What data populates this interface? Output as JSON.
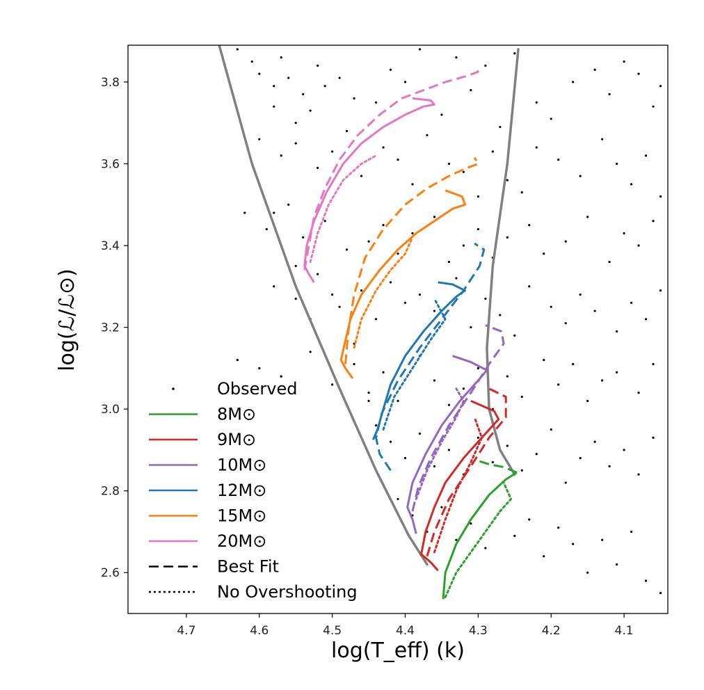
{
  "chart_data": {
    "type": "line",
    "xlabel": "log(T_eff) (k)",
    "ylabel": "log(ℒ/ℒ⊙)",
    "xlim": [
      4.78,
      4.04
    ],
    "ylim": [
      2.5,
      3.89
    ],
    "x_axis_reversed": true,
    "x_ticks": [
      4.7,
      4.6,
      4.5,
      4.4,
      4.3,
      4.2,
      4.1
    ],
    "x_tick_labels": [
      "4.7",
      "4.6",
      "4.5",
      "4.4",
      "4.3",
      "4.2",
      "4.1"
    ],
    "y_ticks": [
      2.6,
      2.8,
      3.0,
      3.2,
      3.4,
      3.6,
      3.8
    ],
    "y_tick_labels": [
      "2.6",
      "2.8",
      "3.0",
      "3.2",
      "3.4",
      "3.6",
      "3.8"
    ],
    "grid": false,
    "legend_position": "lower-left",
    "legend": [
      {
        "label": "Observed",
        "type": "point",
        "color": "#000000"
      },
      {
        "label": "8M⊙",
        "type": "solid",
        "color": "#2ca02c"
      },
      {
        "label": "9M⊙",
        "type": "solid",
        "color": "#d62728"
      },
      {
        "label": "10M⊙",
        "type": "solid",
        "color": "#9467bd"
      },
      {
        "label": "12M⊙",
        "type": "solid",
        "color": "#1f77b4"
      },
      {
        "label": "15M⊙",
        "type": "solid",
        "color": "#ff7f0e"
      },
      {
        "label": "20M⊙",
        "type": "solid",
        "color": "#e377c2"
      },
      {
        "label": "Best Fit",
        "type": "dashed",
        "color": "#000000"
      },
      {
        "label": "No Overshooting",
        "type": "dotted",
        "color": "#000000"
      }
    ],
    "boundary_lines": [
      {
        "color": "#808080",
        "x": [
          4.655,
          4.61,
          4.55,
          4.49,
          4.44,
          4.395,
          4.37
        ],
        "y": [
          3.89,
          3.6,
          3.3,
          3.05,
          2.85,
          2.69,
          2.62
        ]
      },
      {
        "color": "#808080",
        "x": [
          4.245,
          4.26,
          4.28,
          4.288,
          4.285,
          4.27,
          4.25
        ],
        "y": [
          3.88,
          3.6,
          3.35,
          3.15,
          3.0,
          2.9,
          2.84
        ]
      }
    ],
    "series": [
      {
        "mass": "8M⊙",
        "color": "#2ca02c",
        "tracks": [
          {
            "style": "solid",
            "x": [
              4.348,
              4.345,
              4.33,
              4.31,
              4.285,
              4.262,
              4.247
            ],
            "y": [
              2.535,
              2.6,
              2.67,
              2.73,
              2.79,
              2.828,
              2.845
            ]
          },
          {
            "style": "dashed",
            "x": [
              4.247,
              4.265,
              4.285,
              4.303
            ],
            "y": [
              2.845,
              2.858,
              2.865,
              2.875
            ]
          },
          {
            "style": "dotted",
            "x": [
              4.345,
              4.33,
              4.31,
              4.29,
              4.27,
              4.255,
              4.265
            ],
            "y": [
              2.54,
              2.6,
              2.65,
              2.7,
              2.75,
              2.78,
              2.82
            ]
          }
        ]
      },
      {
        "mass": "9M⊙",
        "color": "#d62728",
        "tracks": [
          {
            "style": "solid",
            "x": [
              4.355,
              4.365,
              4.378,
              4.372,
              4.36,
              4.345,
              4.32,
              4.295,
              4.272,
              4.278,
              4.31
            ],
            "y": [
              2.605,
              2.625,
              2.645,
              2.7,
              2.76,
              2.82,
              2.88,
              2.93,
              2.975,
              2.995,
              3.02
            ]
          },
          {
            "style": "dashed",
            "x": [
              4.37,
              4.36,
              4.34,
              4.31,
              4.285,
              4.262,
              4.262,
              4.285
            ],
            "y": [
              2.64,
              2.7,
              2.78,
              2.86,
              2.93,
              2.98,
              3.03,
              3.05
            ]
          },
          {
            "style": "dotted",
            "x": [
              4.36,
              4.345,
              4.33,
              4.31,
              4.295,
              4.305
            ],
            "y": [
              2.65,
              2.73,
              2.8,
              2.87,
              2.93,
              2.98
            ]
          }
        ]
      },
      {
        "mass": "10M⊙",
        "color": "#9467bd",
        "tracks": [
          {
            "style": "solid",
            "x": [
              4.385,
              4.39,
              4.397,
              4.39,
              4.372,
              4.35,
              4.325,
              4.3,
              4.288,
              4.31,
              4.335
            ],
            "y": [
              2.695,
              2.73,
              2.76,
              2.82,
              2.89,
              2.96,
              3.02,
              3.07,
              3.095,
              3.115,
              3.13
            ]
          },
          {
            "style": "dashed",
            "x": [
              4.39,
              4.382,
              4.365,
              4.34,
              4.31,
              4.285,
              4.265,
              4.268,
              4.29
            ],
            "y": [
              2.75,
              2.81,
              2.88,
              2.96,
              3.04,
              3.11,
              3.16,
              3.19,
              3.205
            ]
          },
          {
            "style": "dotted",
            "x": [
              4.385,
              4.37,
              4.35,
              4.33,
              4.32,
              4.33
            ],
            "y": [
              2.78,
              2.85,
              2.92,
              2.98,
              3.02,
              3.05
            ]
          }
        ]
      },
      {
        "mass": "12M⊙",
        "color": "#1f77b4",
        "tracks": [
          {
            "style": "solid",
            "x": [
              4.444,
              4.438,
              4.43,
              4.42,
              4.4,
              4.375,
              4.35,
              4.33,
              4.318,
              4.335,
              4.355
            ],
            "y": [
              2.925,
              2.95,
              3.0,
              3.06,
              3.13,
              3.19,
              3.24,
              3.275,
              3.29,
              3.305,
              3.31
            ]
          },
          {
            "style": "dashed",
            "x": [
              4.42,
              4.435,
              4.44,
              4.432,
              4.41,
              4.38,
              4.35,
              4.32,
              4.298,
              4.292,
              4.305
            ],
            "y": [
              2.85,
              2.89,
              2.93,
              2.99,
              3.07,
              3.15,
              3.22,
              3.29,
              3.35,
              3.39,
              3.405
            ]
          },
          {
            "style": "dotted",
            "x": [
              4.43,
              4.415,
              4.39,
              4.365,
              4.345,
              4.36
            ],
            "y": [
              2.95,
              3.03,
              3.1,
              3.17,
              3.22,
              3.27
            ]
          }
        ]
      },
      {
        "mass": "15M⊙",
        "color": "#ff7f0e",
        "tracks": [
          {
            "style": "solid",
            "x": [
              4.472,
              4.482,
              4.488,
              4.483,
              4.475,
              4.46,
              4.435,
              4.41,
              4.385,
              4.36,
              4.335,
              4.318,
              4.322,
              4.345
            ],
            "y": [
              3.075,
              3.1,
              3.12,
              3.16,
              3.22,
              3.28,
              3.34,
              3.39,
              3.43,
              3.46,
              3.49,
              3.5,
              3.52,
              3.535
            ]
          },
          {
            "style": "dashed",
            "x": [
              4.482,
              4.478,
              4.47,
              4.455,
              4.43,
              4.4,
              4.37,
              4.34,
              4.315,
              4.3,
              4.305
            ],
            "y": [
              3.11,
              3.19,
              3.28,
              3.37,
              3.44,
              3.5,
              3.54,
              3.57,
              3.59,
              3.6,
              3.615
            ]
          },
          {
            "style": "dotted",
            "x": [
              4.47,
              4.46,
              4.44,
              4.42,
              4.4,
              4.39
            ],
            "y": [
              3.15,
              3.22,
              3.29,
              3.34,
              3.38,
              3.42
            ]
          }
        ]
      },
      {
        "mass": "20M⊙",
        "color": "#e377c2",
        "tracks": [
          {
            "style": "solid",
            "x": [
              4.525,
              4.532,
              4.538,
              4.535,
              4.525,
              4.508,
              4.485,
              4.46,
              4.43,
              4.4,
              4.375,
              4.36,
              4.365,
              4.39
            ],
            "y": [
              3.31,
              3.33,
              3.35,
              3.4,
              3.46,
              3.53,
              3.6,
              3.65,
              3.69,
              3.72,
              3.74,
              3.745,
              3.755,
              3.76
            ]
          },
          {
            "style": "dashed",
            "x": [
              4.538,
              4.532,
              4.525,
              4.51,
              4.49,
              4.465,
              4.435,
              4.405,
              4.375,
              4.345,
              4.315,
              4.3,
              4.305
            ],
            "y": [
              3.34,
              3.4,
              3.47,
              3.54,
              3.61,
              3.67,
              3.72,
              3.76,
              3.78,
              3.8,
              3.815,
              3.825,
              3.835
            ]
          },
          {
            "style": "dotted",
            "x": [
              4.53,
              4.52,
              4.505,
              4.485,
              4.46,
              4.44
            ],
            "y": [
              3.36,
              3.43,
              3.5,
              3.56,
              3.6,
              3.62
            ]
          }
        ]
      }
    ],
    "observed_points": {
      "x": [
        4.63,
        4.61,
        4.6,
        4.58,
        4.57,
        4.56,
        4.54,
        4.52,
        4.58,
        4.55,
        4.53,
        4.51,
        4.49,
        4.47,
        4.44,
        4.42,
        4.4,
        4.38,
        4.35,
        4.33,
        4.31,
        4.29,
        4.27,
        4.25,
        4.22,
        4.2,
        4.17,
        4.14,
        4.12,
        4.1,
        4.08,
        4.06,
        4.05,
        4.6,
        4.57,
        4.55,
        4.52,
        4.5,
        4.48,
        4.46,
        4.43,
        4.41,
        4.39,
        4.37,
        4.34,
        4.32,
        4.3,
        4.28,
        4.26,
        4.24,
        4.22,
        4.19,
        4.16,
        4.13,
        4.11,
        4.09,
        4.07,
        4.62,
        4.59,
        4.56,
        4.54,
        4.51,
        4.48,
        4.45,
        4.43,
        4.41,
        4.39,
        4.36,
        4.34,
        4.32,
        4.3,
        4.28,
        4.26,
        4.23,
        4.21,
        4.18,
        4.15,
        4.12,
        4.1,
        4.08,
        4.06,
        4.05,
        4.58,
        4.55,
        4.52,
        4.49,
        4.46,
        4.44,
        4.42,
        4.4,
        4.38,
        4.36,
        4.33,
        4.31,
        4.29,
        4.27,
        4.25,
        4.23,
        4.2,
        4.18,
        4.16,
        4.14,
        4.11,
        4.09,
        4.07,
        4.05,
        4.63,
        4.6,
        4.57,
        4.53,
        4.5,
        4.47,
        4.45,
        4.43,
        4.41,
        4.38,
        4.36,
        4.34,
        4.32,
        4.3,
        4.28,
        4.26,
        4.24,
        4.21,
        4.19,
        4.17,
        4.15,
        4.13,
        4.11,
        4.08,
        4.06,
        4.44,
        4.42,
        4.4,
        4.38,
        4.36,
        4.34,
        4.32,
        4.3,
        4.28,
        4.26,
        4.24,
        4.22,
        4.2,
        4.18,
        4.16,
        4.14,
        4.12,
        4.1,
        4.08,
        4.06,
        4.41,
        4.39,
        4.37,
        4.35,
        4.33,
        4.31,
        4.29,
        4.27,
        4.25,
        4.23,
        4.21,
        4.19,
        4.17,
        4.15,
        4.13,
        4.11,
        4.09,
        4.07,
        4.05,
        4.6,
        4.58,
        4.55,
        4.53,
        4.5,
        4.47,
        4.45
      ],
      "y": [
        3.88,
        3.85,
        3.82,
        3.79,
        3.86,
        3.81,
        3.77,
        3.84,
        3.74,
        3.7,
        3.73,
        3.79,
        3.81,
        3.76,
        3.75,
        3.83,
        3.8,
        3.88,
        3.72,
        3.86,
        3.78,
        3.84,
        3.69,
        3.87,
        3.75,
        3.71,
        3.8,
        3.83,
        3.77,
        3.85,
        3.82,
        3.74,
        3.79,
        3.66,
        3.62,
        3.65,
        3.59,
        3.63,
        3.68,
        3.57,
        3.64,
        3.61,
        3.55,
        3.67,
        3.6,
        3.58,
        3.52,
        3.63,
        3.56,
        3.53,
        3.64,
        3.61,
        3.57,
        3.66,
        3.6,
        3.55,
        3.62,
        3.48,
        3.44,
        3.5,
        3.42,
        3.46,
        3.39,
        3.41,
        3.45,
        3.38,
        3.43,
        3.47,
        3.36,
        3.4,
        3.44,
        3.37,
        3.42,
        3.45,
        3.38,
        3.41,
        3.47,
        3.36,
        3.43,
        3.4,
        3.46,
        3.52,
        3.3,
        3.27,
        3.33,
        3.25,
        3.29,
        3.22,
        3.31,
        3.26,
        3.28,
        3.24,
        3.32,
        3.2,
        3.27,
        3.23,
        3.18,
        3.3,
        3.25,
        3.21,
        3.28,
        3.24,
        3.19,
        3.26,
        3.22,
        3.29,
        3.12,
        3.1,
        3.08,
        3.14,
        3.06,
        3.11,
        3.04,
        3.09,
        3.02,
        3.13,
        3.07,
        3.01,
        3.05,
        3.1,
        3.0,
        3.08,
        3.03,
        3.12,
        3.06,
        3.11,
        3.02,
        3.07,
        3.09,
        3.04,
        3.11,
        2.96,
        2.92,
        2.88,
        2.94,
        2.86,
        2.9,
        2.84,
        2.93,
        2.87,
        2.91,
        2.85,
        2.89,
        2.95,
        2.82,
        2.88,
        2.92,
        2.86,
        2.9,
        2.84,
        2.93,
        2.78,
        2.74,
        2.7,
        2.76,
        2.68,
        2.72,
        2.66,
        2.75,
        2.69,
        2.73,
        2.64,
        2.71,
        2.67,
        2.6,
        2.68,
        2.62,
        2.7,
        2.58,
        2.55,
        3.55,
        3.48,
        3.35,
        3.22,
        3.28,
        3.16,
        3.02
      ]
    }
  }
}
